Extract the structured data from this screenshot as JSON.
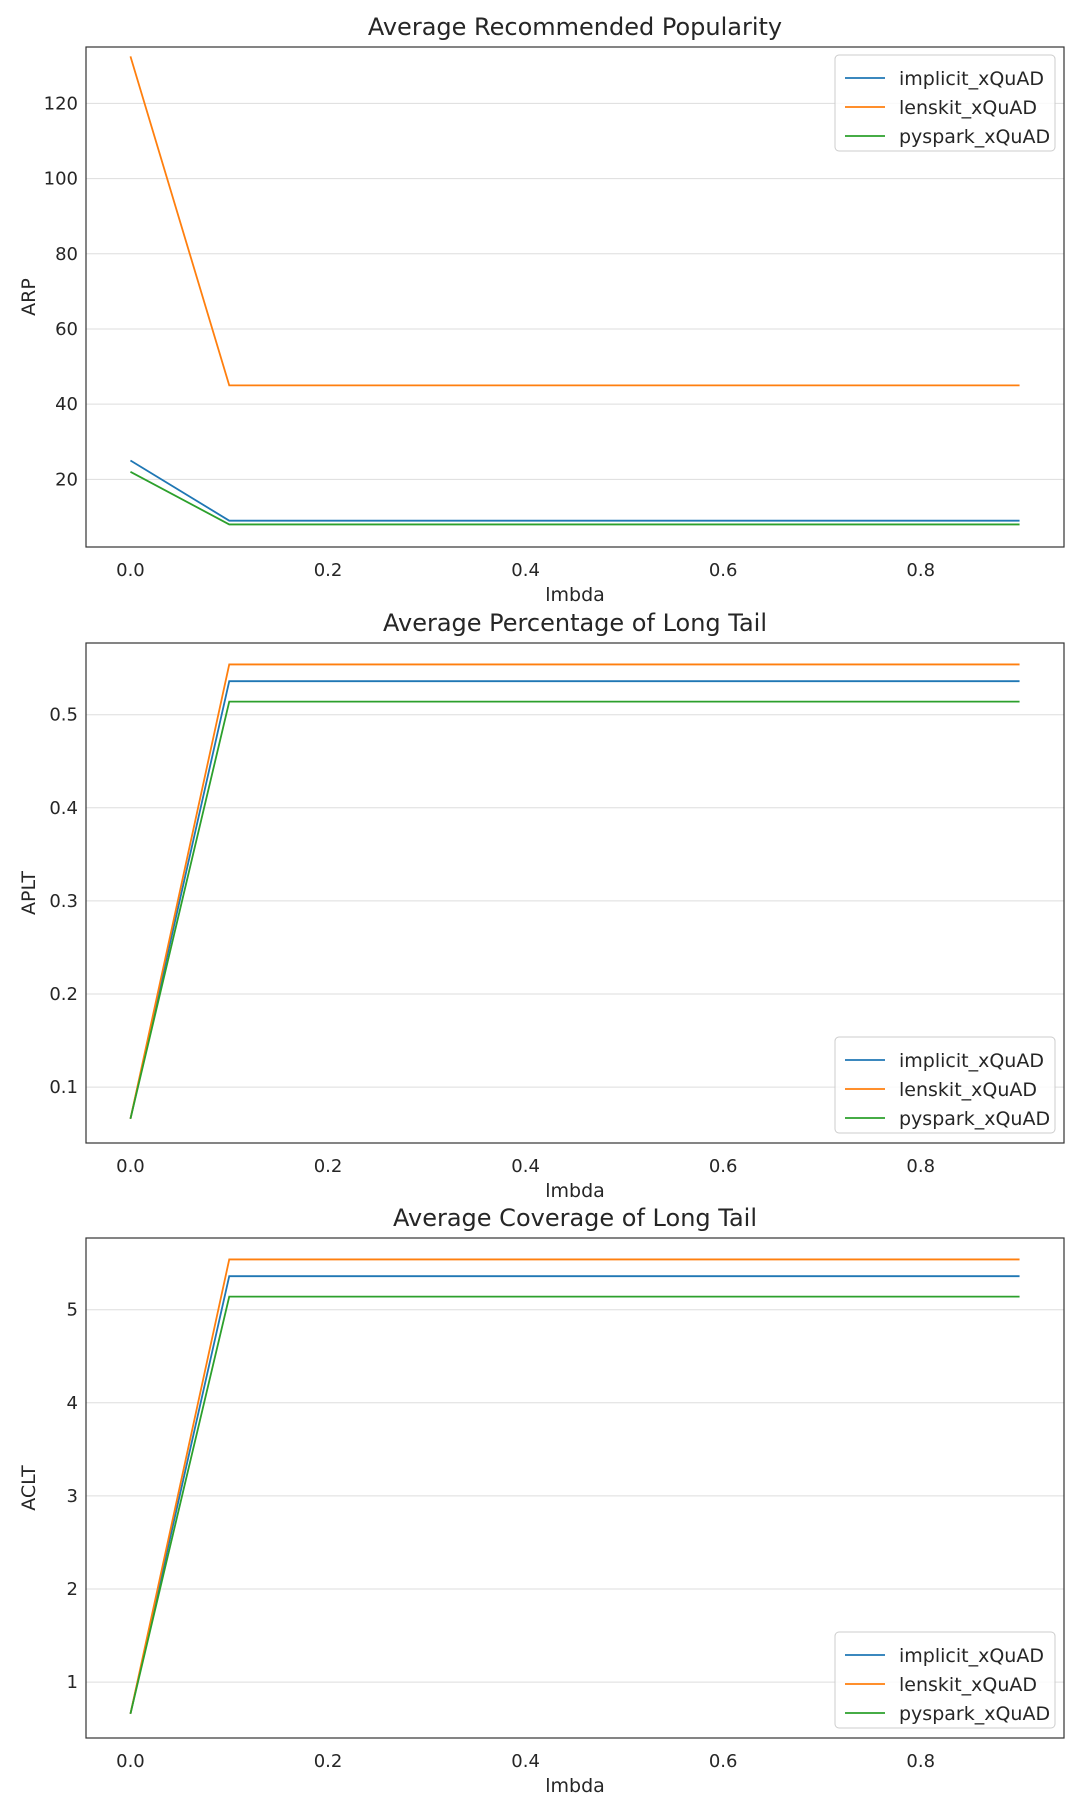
{
  "palette": {
    "implicit_xQuAD": "#1f77b4",
    "lenskit_xQuAD": "#ff7f0e",
    "pyspark_xQuAD": "#2ca02c"
  },
  "chart_data": [
    {
      "type": "line",
      "title": "Average Recommended Popularity",
      "xlabel": "lmbda",
      "ylabel": "ARP",
      "xlim": [
        -0.045,
        0.945
      ],
      "ylim": [
        2,
        135
      ],
      "xticks": [
        0.0,
        0.2,
        0.4,
        0.6,
        0.8
      ],
      "xtick_labels": [
        "0.0",
        "0.2",
        "0.4",
        "0.6",
        "0.8"
      ],
      "yticks": [
        20,
        40,
        60,
        80,
        100,
        120
      ],
      "ytick_labels": [
        "20",
        "40",
        "60",
        "80",
        "100",
        "120"
      ],
      "grid": true,
      "legend_position": "top-right",
      "x": [
        0.0,
        0.1,
        0.2,
        0.3,
        0.4,
        0.5,
        0.6,
        0.7,
        0.8,
        0.9
      ],
      "series": [
        {
          "name": "implicit_xQuAD",
          "values": [
            25.0,
            9.0,
            9.0,
            9.0,
            9.0,
            9.0,
            9.0,
            9.0,
            9.0,
            9.0
          ]
        },
        {
          "name": "lenskit_xQuAD",
          "values": [
            132.5,
            45.0,
            45.0,
            45.0,
            45.0,
            45.0,
            45.0,
            45.0,
            45.0,
            45.0
          ]
        },
        {
          "name": "pyspark_xQuAD",
          "values": [
            22.0,
            8.0,
            8.0,
            8.0,
            8.0,
            8.0,
            8.0,
            8.0,
            8.0,
            8.0
          ]
        }
      ]
    },
    {
      "type": "line",
      "title": "Average Percentage of Long Tail",
      "xlabel": "lmbda",
      "ylabel": "APLT",
      "xlim": [
        -0.045,
        0.945
      ],
      "ylim": [
        0.04,
        0.577
      ],
      "xticks": [
        0.0,
        0.2,
        0.4,
        0.6,
        0.8
      ],
      "xtick_labels": [
        "0.0",
        "0.2",
        "0.4",
        "0.6",
        "0.8"
      ],
      "yticks": [
        0.1,
        0.2,
        0.3,
        0.4,
        0.5
      ],
      "ytick_labels": [
        "0.1",
        "0.2",
        "0.3",
        "0.4",
        "0.5"
      ],
      "grid": true,
      "legend_position": "bottom-right",
      "x": [
        0.0,
        0.1,
        0.2,
        0.3,
        0.4,
        0.5,
        0.6,
        0.7,
        0.8,
        0.9
      ],
      "series": [
        {
          "name": "implicit_xQuAD",
          "values": [
            0.066,
            0.536,
            0.536,
            0.536,
            0.536,
            0.536,
            0.536,
            0.536,
            0.536,
            0.536
          ]
        },
        {
          "name": "lenskit_xQuAD",
          "values": [
            0.066,
            0.554,
            0.554,
            0.554,
            0.554,
            0.554,
            0.554,
            0.554,
            0.554,
            0.554
          ]
        },
        {
          "name": "pyspark_xQuAD",
          "values": [
            0.066,
            0.514,
            0.514,
            0.514,
            0.514,
            0.514,
            0.514,
            0.514,
            0.514,
            0.514
          ]
        }
      ]
    },
    {
      "type": "line",
      "title": "Average Coverage of Long Tail",
      "xlabel": "lmbda",
      "ylabel": "ACLT",
      "xlim": [
        -0.045,
        0.945
      ],
      "ylim": [
        0.4,
        5.77
      ],
      "xticks": [
        0.0,
        0.2,
        0.4,
        0.6,
        0.8
      ],
      "xtick_labels": [
        "0.0",
        "0.2",
        "0.4",
        "0.6",
        "0.8"
      ],
      "yticks": [
        1,
        2,
        3,
        4,
        5
      ],
      "ytick_labels": [
        "1",
        "2",
        "3",
        "4",
        "5"
      ],
      "grid": true,
      "legend_position": "bottom-right",
      "x": [
        0.0,
        0.1,
        0.2,
        0.3,
        0.4,
        0.5,
        0.6,
        0.7,
        0.8,
        0.9
      ],
      "series": [
        {
          "name": "implicit_xQuAD",
          "values": [
            0.66,
            5.36,
            5.36,
            5.36,
            5.36,
            5.36,
            5.36,
            5.36,
            5.36,
            5.36
          ]
        },
        {
          "name": "lenskit_xQuAD",
          "values": [
            0.66,
            5.54,
            5.54,
            5.54,
            5.54,
            5.54,
            5.54,
            5.54,
            5.54,
            5.54
          ]
        },
        {
          "name": "pyspark_xQuAD",
          "values": [
            0.66,
            5.14,
            5.14,
            5.14,
            5.14,
            5.14,
            5.14,
            5.14,
            5.14,
            5.14
          ]
        }
      ]
    }
  ]
}
